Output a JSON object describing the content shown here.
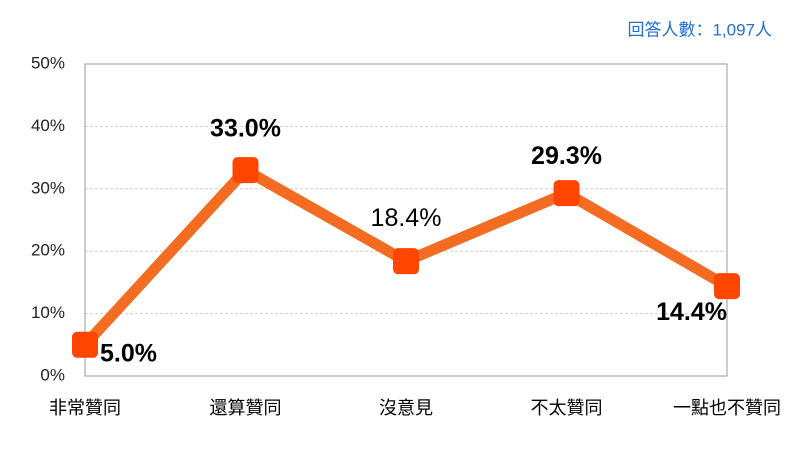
{
  "chart_data": {
    "type": "line",
    "annotation": "回答人數：1,097人",
    "categories": [
      "非常贊同",
      "還算贊同",
      "沒意見",
      "不太贊同",
      "一點也不贊同"
    ],
    "values": [
      5.0,
      33.0,
      18.4,
      29.3,
      14.4
    ],
    "value_labels": [
      "5.0%",
      "33.0%",
      "18.4%",
      "29.3%",
      "14.4%"
    ],
    "color": "#f36c21",
    "marker_color": "#ff4500",
    "ylim": [
      0,
      50
    ],
    "yticks": [
      {
        "value": 0,
        "label": "0%"
      },
      {
        "value": 10,
        "label": "10%"
      },
      {
        "value": 20,
        "label": "20%"
      },
      {
        "value": 30,
        "label": "30%"
      },
      {
        "value": 40,
        "label": "40%"
      },
      {
        "value": 50,
        "label": "50%"
      }
    ],
    "grid": true
  }
}
